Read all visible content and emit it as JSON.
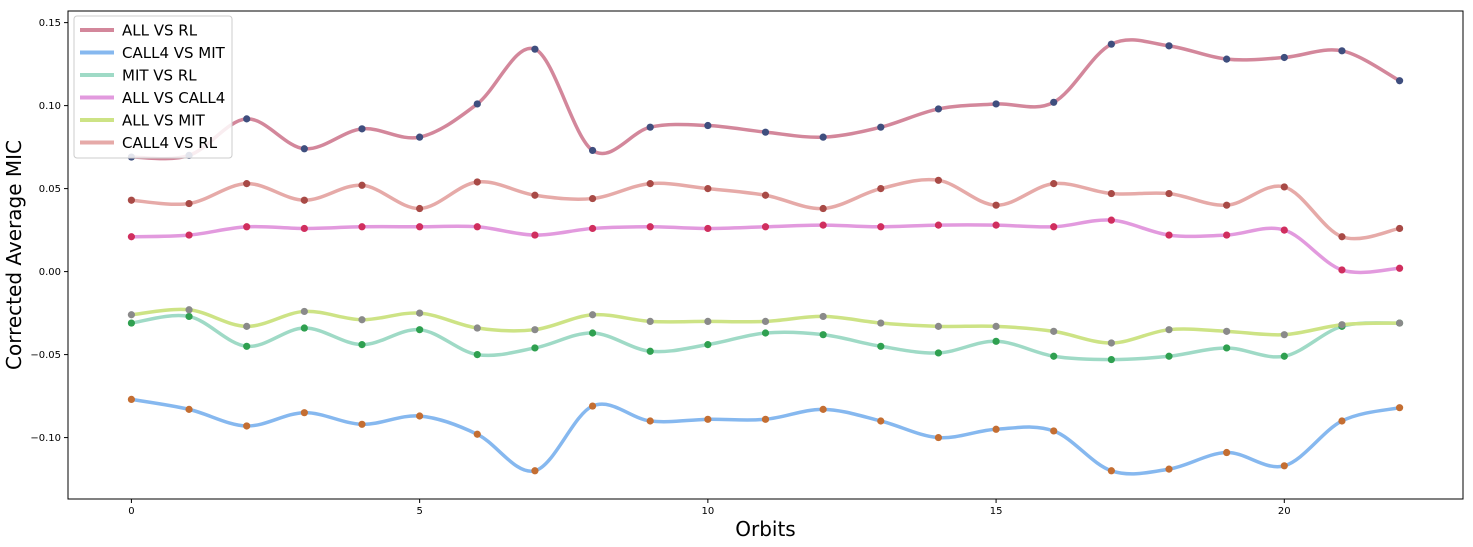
{
  "chart_data": {
    "type": "line",
    "title": "",
    "xlabel": "Orbits",
    "ylabel": "Corrected Average MIC",
    "xlim": [
      -1.1,
      23.1
    ],
    "ylim": [
      -0.137,
      0.157
    ],
    "xticks": [
      0,
      5,
      10,
      15,
      20
    ],
    "yticks": [
      -0.1,
      -0.05,
      0.0,
      0.05,
      0.1,
      0.15
    ],
    "ytick_labels": [
      "−0.10",
      "−0.05",
      "0.00",
      "0.05",
      "0.10",
      "0.15"
    ],
    "xtick_labels": [
      "0",
      "5",
      "10",
      "15",
      "20"
    ],
    "legend_position": "upper-left",
    "grid": false,
    "smooth": true,
    "x": [
      0,
      1,
      2,
      3,
      4,
      5,
      6,
      7,
      8,
      9,
      10,
      11,
      12,
      13,
      14,
      15,
      16,
      17,
      18,
      19,
      20,
      21,
      22
    ],
    "series": [
      {
        "name": "ALL VS RL",
        "line_color": "#d3879b",
        "marker_color": "#3f4e7e",
        "values": [
          0.069,
          0.07,
          0.092,
          0.074,
          0.086,
          0.081,
          0.101,
          0.134,
          0.073,
          0.087,
          0.088,
          0.084,
          0.081,
          0.087,
          0.098,
          0.101,
          0.102,
          0.137,
          0.136,
          0.128,
          0.129,
          0.133,
          0.115
        ]
      },
      {
        "name": "CALL4 VS MIT",
        "line_color": "#86b8ef",
        "marker_color": "#c46e32",
        "values": [
          -0.077,
          -0.083,
          -0.093,
          -0.085,
          -0.092,
          -0.087,
          -0.098,
          -0.12,
          -0.081,
          -0.09,
          -0.089,
          -0.089,
          -0.083,
          -0.09,
          -0.1,
          -0.095,
          -0.096,
          -0.12,
          -0.119,
          -0.109,
          -0.117,
          -0.09,
          -0.082
        ]
      },
      {
        "name": "MIT VS RL",
        "line_color": "#9fdac6",
        "marker_color": "#2fa050",
        "values": [
          -0.031,
          -0.027,
          -0.045,
          -0.034,
          -0.044,
          -0.035,
          -0.05,
          -0.046,
          -0.037,
          -0.048,
          -0.044,
          -0.037,
          -0.038,
          -0.045,
          -0.049,
          -0.042,
          -0.051,
          -0.053,
          -0.051,
          -0.046,
          -0.051,
          -0.033,
          -0.031
        ]
      },
      {
        "name": "ALL VS CALL4",
        "line_color": "#e29ade",
        "marker_color": "#d02e5e",
        "values": [
          0.021,
          0.022,
          0.027,
          0.026,
          0.027,
          0.027,
          0.027,
          0.022,
          0.026,
          0.027,
          0.026,
          0.027,
          0.028,
          0.027,
          0.028,
          0.028,
          0.027,
          0.031,
          0.022,
          0.022,
          0.025,
          0.001,
          0.002
        ]
      },
      {
        "name": "ALL VS MIT",
        "line_color": "#cde385",
        "marker_color": "#8a8a8a",
        "values": [
          -0.026,
          -0.023,
          -0.033,
          -0.024,
          -0.029,
          -0.025,
          -0.034,
          -0.035,
          -0.026,
          -0.03,
          -0.03,
          -0.03,
          -0.027,
          -0.031,
          -0.033,
          -0.033,
          -0.036,
          -0.043,
          -0.035,
          -0.036,
          -0.038,
          -0.032,
          -0.031
        ]
      },
      {
        "name": "CALL4 VS RL",
        "line_color": "#e6aaa8",
        "marker_color": "#a84a46",
        "values": [
          0.043,
          0.041,
          0.053,
          0.043,
          0.052,
          0.038,
          0.054,
          0.046,
          0.044,
          0.053,
          0.05,
          0.046,
          0.038,
          0.05,
          0.055,
          0.04,
          0.053,
          0.047,
          0.047,
          0.04,
          0.051,
          0.021,
          0.026
        ]
      }
    ]
  }
}
